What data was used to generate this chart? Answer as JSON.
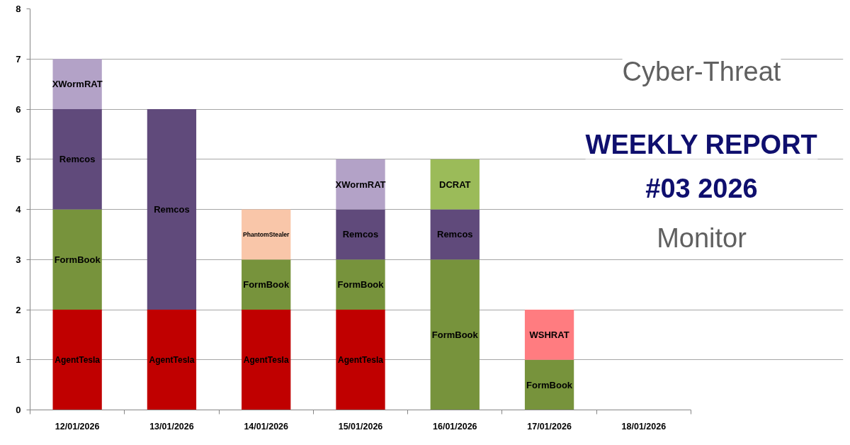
{
  "chart_data": {
    "type": "bar",
    "stacked": true,
    "title": "WEEKLY REPORT",
    "subtitle": "#03 2026",
    "annotations": [
      "Cyber-Threat",
      "Monitor"
    ],
    "categories": [
      "12/01/2026",
      "13/01/2026",
      "14/01/2026",
      "15/01/2026",
      "16/01/2026",
      "17/01/2026",
      "18/01/2026"
    ],
    "series": [
      {
        "name": "AgentTesla",
        "color": "#c00000",
        "values": [
          2,
          2,
          2,
          2,
          null,
          null,
          null
        ]
      },
      {
        "name": "FormBook",
        "color": "#77933c",
        "values": [
          2,
          null,
          1,
          1,
          3,
          1,
          null
        ]
      },
      {
        "name": "Remcos",
        "color": "#604a7b",
        "values": [
          2,
          4,
          null,
          1,
          1,
          null,
          null
        ]
      },
      {
        "name": "XWormRAT",
        "color": "#b3a2c7",
        "values": [
          1,
          null,
          null,
          1,
          null,
          null,
          null
        ]
      },
      {
        "name": "PhantomStealer",
        "color": "#f9c6a9",
        "values": [
          null,
          null,
          1,
          null,
          null,
          null,
          null
        ]
      },
      {
        "name": "DCRAT",
        "color": "#9bbb59",
        "values": [
          null,
          null,
          null,
          null,
          1,
          null,
          null
        ]
      },
      {
        "name": "WSHRAT",
        "color": "#ff7c80",
        "values": [
          null,
          null,
          null,
          null,
          null,
          1,
          null
        ]
      }
    ],
    "ylim": [
      0,
      8
    ],
    "yticks": [
      0,
      1,
      2,
      3,
      4,
      5,
      6,
      7,
      8
    ],
    "grid": "y"
  }
}
